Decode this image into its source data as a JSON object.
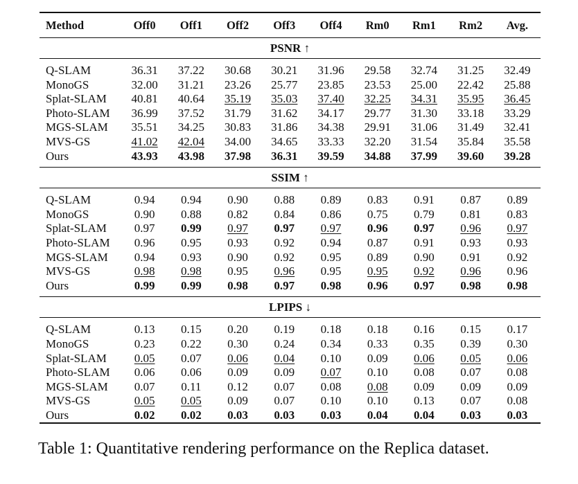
{
  "table": {
    "headers": [
      "Method",
      "Off0",
      "Off1",
      "Off2",
      "Off3",
      "Off4",
      "Rm0",
      "Rm1",
      "Rm2",
      "Avg."
    ],
    "sections": [
      {
        "title": "PSNR ↑",
        "rows": [
          {
            "method": "Q-SLAM",
            "values": [
              "36.31",
              "37.22",
              "30.68",
              "30.21",
              "31.96",
              "29.58",
              "32.74",
              "31.25",
              "32.49"
            ],
            "style": [
              "",
              "",
              "",
              "",
              "",
              "",
              "",
              "",
              ""
            ]
          },
          {
            "method": "MonoGS",
            "values": [
              "32.00",
              "31.21",
              "23.26",
              "25.77",
              "23.85",
              "23.53",
              "25.00",
              "22.42",
              "25.88"
            ],
            "style": [
              "",
              "",
              "",
              "",
              "",
              "",
              "",
              "",
              ""
            ]
          },
          {
            "method": "Splat-SLAM",
            "values": [
              "40.81",
              "40.64",
              "35.19",
              "35.03",
              "37.40",
              "32.25",
              "34.31",
              "35.95",
              "36.45"
            ],
            "style": [
              "",
              "",
              "u",
              "u",
              "u",
              "u",
              "u",
              "u",
              "u"
            ]
          },
          {
            "method": "Photo-SLAM",
            "values": [
              "36.99",
              "37.52",
              "31.79",
              "31.62",
              "34.17",
              "29.77",
              "31.30",
              "33.18",
              "33.29"
            ],
            "style": [
              "",
              "",
              "",
              "",
              "",
              "",
              "",
              "",
              ""
            ]
          },
          {
            "method": "MGS-SLAM",
            "values": [
              "35.51",
              "34.25",
              "30.83",
              "31.86",
              "34.38",
              "29.91",
              "31.06",
              "31.49",
              "32.41"
            ],
            "style": [
              "",
              "",
              "",
              "",
              "",
              "",
              "",
              "",
              ""
            ]
          },
          {
            "method": "MVS-GS",
            "values": [
              "41.02",
              "42.04",
              "34.00",
              "34.65",
              "33.33",
              "32.20",
              "31.54",
              "35.84",
              "35.58"
            ],
            "style": [
              "u",
              "u",
              "",
              "",
              "",
              "",
              "",
              "",
              ""
            ]
          },
          {
            "method": "Ours",
            "values": [
              "43.93",
              "43.98",
              "37.98",
              "36.31",
              "39.59",
              "34.88",
              "37.99",
              "39.60",
              "39.28"
            ],
            "style": [
              "b",
              "b",
              "b",
              "b",
              "b",
              "b",
              "b",
              "b",
              "b"
            ]
          }
        ]
      },
      {
        "title": "SSIM ↑",
        "rows": [
          {
            "method": "Q-SLAM",
            "values": [
              "0.94",
              "0.94",
              "0.90",
              "0.88",
              "0.89",
              "0.83",
              "0.91",
              "0.87",
              "0.89"
            ],
            "style": [
              "",
              "",
              "",
              "",
              "",
              "",
              "",
              "",
              ""
            ]
          },
          {
            "method": "MonoGS",
            "values": [
              "0.90",
              "0.88",
              "0.82",
              "0.84",
              "0.86",
              "0.75",
              "0.79",
              "0.81",
              "0.83"
            ],
            "style": [
              "",
              "",
              "",
              "",
              "",
              "",
              "",
              "",
              ""
            ]
          },
          {
            "method": "Splat-SLAM",
            "values": [
              "0.97",
              "0.99",
              "0.97",
              "0.97",
              "0.97",
              "0.96",
              "0.97",
              "0.96",
              "0.97"
            ],
            "style": [
              "",
              "b",
              "u",
              "b",
              "u",
              "b",
              "b",
              "u",
              "u"
            ]
          },
          {
            "method": "Photo-SLAM",
            "values": [
              "0.96",
              "0.95",
              "0.93",
              "0.92",
              "0.94",
              "0.87",
              "0.91",
              "0.93",
              "0.93"
            ],
            "style": [
              "",
              "",
              "",
              "",
              "",
              "",
              "",
              "",
              ""
            ]
          },
          {
            "method": "MGS-SLAM",
            "values": [
              "0.94",
              "0.93",
              "0.90",
              "0.92",
              "0.95",
              "0.89",
              "0.90",
              "0.91",
              "0.92"
            ],
            "style": [
              "",
              "",
              "",
              "",
              "",
              "",
              "",
              "",
              ""
            ]
          },
          {
            "method": "MVS-GS",
            "values": [
              "0.98",
              "0.98",
              "0.95",
              "0.96",
              "0.95",
              "0.95",
              "0.92",
              "0.96",
              "0.96"
            ],
            "style": [
              "u",
              "u",
              "",
              "u",
              "",
              "u",
              "u",
              "u",
              ""
            ]
          },
          {
            "method": "Ours",
            "values": [
              "0.99",
              "0.99",
              "0.98",
              "0.97",
              "0.98",
              "0.96",
              "0.97",
              "0.98",
              "0.98"
            ],
            "style": [
              "b",
              "b",
              "b",
              "b",
              "b",
              "b",
              "b",
              "b",
              "b"
            ]
          }
        ]
      },
      {
        "title": "LPIPS ↓",
        "rows": [
          {
            "method": "Q-SLAM",
            "values": [
              "0.13",
              "0.15",
              "0.20",
              "0.19",
              "0.18",
              "0.18",
              "0.16",
              "0.15",
              "0.17"
            ],
            "style": [
              "",
              "",
              "",
              "",
              "",
              "",
              "",
              "",
              ""
            ]
          },
          {
            "method": "MonoGS",
            "values": [
              "0.23",
              "0.22",
              "0.30",
              "0.24",
              "0.34",
              "0.33",
              "0.35",
              "0.39",
              "0.30"
            ],
            "style": [
              "",
              "",
              "",
              "",
              "",
              "",
              "",
              "",
              ""
            ]
          },
          {
            "method": "Splat-SLAM",
            "values": [
              "0.05",
              "0.07",
              "0.06",
              "0.04",
              "0.10",
              "0.09",
              "0.06",
              "0.05",
              "0.06"
            ],
            "style": [
              "u",
              "",
              "u",
              "u",
              "",
              "",
              "u",
              "u",
              "u"
            ]
          },
          {
            "method": "Photo-SLAM",
            "values": [
              "0.06",
              "0.06",
              "0.09",
              "0.09",
              "0.07",
              "0.10",
              "0.08",
              "0.07",
              "0.08"
            ],
            "style": [
              "",
              "",
              "",
              "",
              "u",
              "",
              "",
              "",
              ""
            ]
          },
          {
            "method": "MGS-SLAM",
            "values": [
              "0.07",
              "0.11",
              "0.12",
              "0.07",
              "0.08",
              "0.08",
              "0.09",
              "0.09",
              "0.09"
            ],
            "style": [
              "",
              "",
              "",
              "",
              "",
              "u",
              "",
              "",
              ""
            ]
          },
          {
            "method": "MVS-GS",
            "values": [
              "0.05",
              "0.05",
              "0.09",
              "0.07",
              "0.10",
              "0.10",
              "0.13",
              "0.07",
              "0.08"
            ],
            "style": [
              "u",
              "u",
              "",
              "",
              "",
              "",
              "",
              "",
              ""
            ]
          },
          {
            "method": "Ours",
            "values": [
              "0.02",
              "0.02",
              "0.03",
              "0.03",
              "0.03",
              "0.04",
              "0.04",
              "0.03",
              "0.03"
            ],
            "style": [
              "b",
              "b",
              "b",
              "b",
              "b",
              "b",
              "b",
              "b",
              "b"
            ]
          }
        ]
      }
    ]
  },
  "caption": "Table 1: Quantitative rendering performance on the Replica dataset."
}
